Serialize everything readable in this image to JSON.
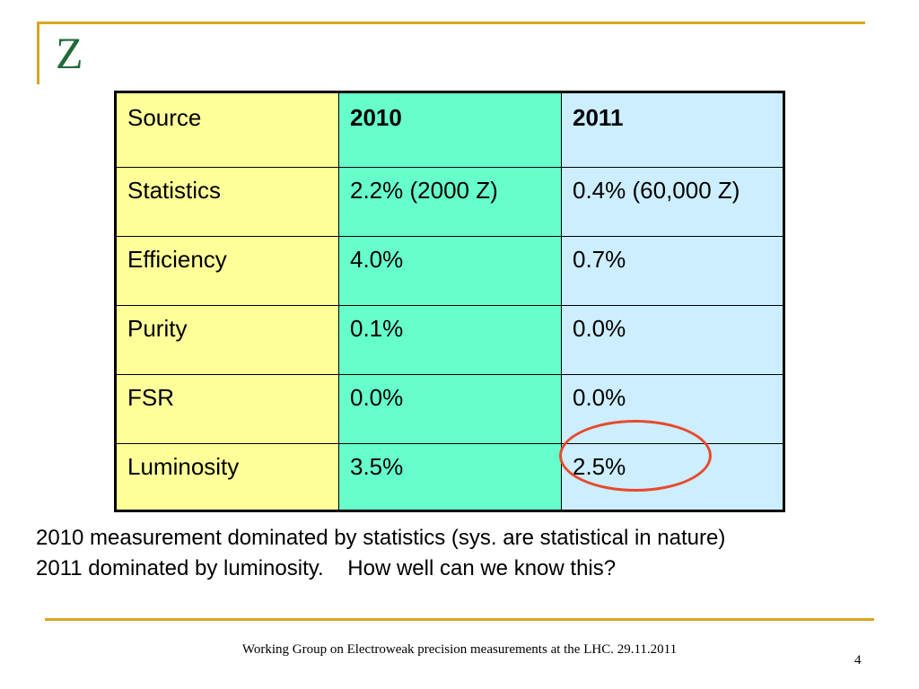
{
  "slide": {
    "title": "Z",
    "footer": "Working Group on Electroweak precision measurements at the LHC.  29.11.2011",
    "page_number": "4"
  },
  "table": {
    "header": [
      "Source",
      "2010",
      "2011"
    ],
    "rows": [
      [
        "Statistics",
        "2.2%  (2000 Z)",
        "0.4% (60,000 Z)"
      ],
      [
        "Efficiency",
        "4.0%",
        "0.7%"
      ],
      [
        "Purity",
        "0.1%",
        "0.0%"
      ],
      [
        "FSR",
        "0.0%",
        "0.0%"
      ],
      [
        "Luminosity",
        "3.5%",
        "2.5%"
      ]
    ]
  },
  "notes": {
    "line1": "2010 measurement dominated by statistics (sys. are statistical in nature)",
    "line2": "2011 dominated by luminosity.    How well can we know this?"
  },
  "colors": {
    "accent": "#d9a625",
    "title": "#1f6b3a",
    "col_source": "#ffff99",
    "col_2010": "#66ffcc",
    "col_2011": "#cceeff",
    "highlight": "#e8492c"
  }
}
